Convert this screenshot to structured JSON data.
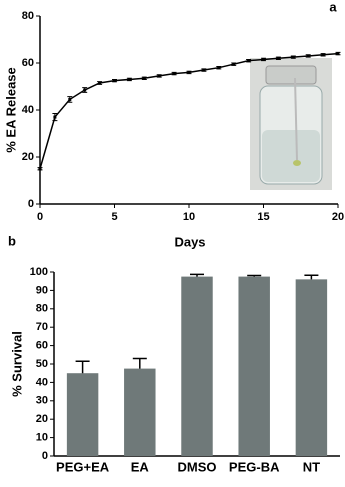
{
  "chart_data": [
    {
      "type": "line",
      "panel_label": "a",
      "x_label": "Days",
      "y_label": "% EA Release",
      "x": [
        0,
        1,
        2,
        3,
        4,
        5,
        6,
        7,
        8,
        9,
        10,
        11,
        12,
        13,
        14,
        15,
        16,
        17,
        18,
        19,
        20
      ],
      "series": [
        {
          "color": "#000000",
          "values": [
            15,
            37,
            44.5,
            48.5,
            51.5,
            52.5,
            53,
            53.5,
            54.5,
            55.5,
            56,
            57,
            58,
            59.5,
            61,
            61.5,
            62,
            62.5,
            63,
            63.5,
            64
          ],
          "errors": [
            0.5,
            1.5,
            1.2,
            1,
            0.6,
            0.5,
            0.5,
            0.5,
            0.5,
            0.5,
            0.5,
            0.5,
            0.5,
            0.5,
            0.5,
            0.5,
            0.5,
            0.5,
            0.5,
            0.5,
            0.5
          ]
        }
      ],
      "xlim": [
        0,
        20
      ],
      "xticks": [
        0,
        5,
        10,
        15,
        20
      ],
      "ylim": [
        0,
        80
      ],
      "yticks": [
        0,
        20,
        40,
        60,
        80
      ]
    },
    {
      "type": "bar",
      "panel_label": "b",
      "y_label": "% Survival",
      "categories": [
        "PEG+EA",
        "EA",
        "DMSO",
        "PEG-BA",
        "NT"
      ],
      "values": [
        45,
        47.5,
        97.5,
        97.5,
        96
      ],
      "errors": [
        6.5,
        5.5,
        1.2,
        0.6,
        2.2
      ],
      "color": "#6f7979",
      "ylim": [
        0,
        100
      ],
      "yticks": [
        0,
        10,
        20,
        30,
        40,
        50,
        60,
        70,
        80,
        90,
        100
      ]
    }
  ]
}
